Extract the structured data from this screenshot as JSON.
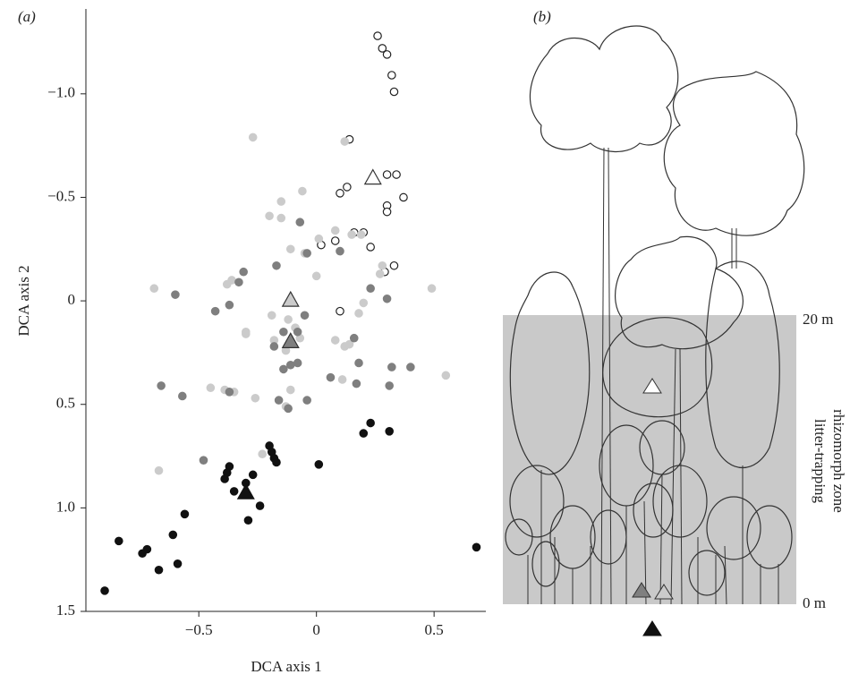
{
  "chart_data": {
    "type": "scatter",
    "panel_label": "(a)",
    "xlabel": "DCA axis 1",
    "ylabel": "DCA axis 2",
    "xlim": [
      -0.98,
      0.72
    ],
    "ylim": [
      1.5,
      -1.41
    ],
    "xticks": [
      {
        "value": -0.5,
        "label": "−0.5"
      },
      0,
      0.5
    ],
    "yticks": [
      {
        "value": -1.0,
        "label": "−1.0"
      },
      {
        "value": -0.5,
        "label": "−0.5"
      },
      0,
      0.5,
      {
        "value": 1.0,
        "label": "1.0"
      },
      1.5
    ],
    "series": [
      {
        "facecolor": "#ffffff",
        "edgecolor": "#222222",
        "x": [
          0.26,
          0.28,
          0.3,
          0.32,
          0.33,
          0.14,
          0.13,
          0.1,
          0.3,
          0.34,
          0.37,
          0.3,
          0.3,
          0.08,
          0.16,
          0.2,
          0.23,
          0.33,
          0.29,
          0.02,
          0.1
        ],
        "y": [
          -1.28,
          -1.22,
          -1.19,
          -1.09,
          -1.01,
          -0.78,
          -0.55,
          -0.52,
          -0.61,
          -0.61,
          -0.5,
          -0.46,
          -0.43,
          -0.29,
          -0.33,
          -0.33,
          -0.26,
          -0.17,
          -0.14,
          -0.27,
          0.05
        ],
        "centroid_x": 0.24,
        "centroid_y": -0.59
      },
      {
        "facecolor": "#cbcbcb",
        "edgecolor": "#cbcbcb",
        "x": [
          -0.69,
          -0.67,
          -0.38,
          -0.36,
          -0.39,
          -0.35,
          -0.26,
          -0.23,
          -0.3,
          -0.3,
          -0.15,
          -0.06,
          -0.15,
          -0.11,
          -0.2,
          -0.05,
          0.0,
          0.01,
          0.08,
          0.15,
          0.19,
          0.27,
          0.28,
          -0.19,
          -0.12,
          -0.09,
          -0.07,
          -0.13,
          -0.11,
          -0.13,
          0.08,
          0.12,
          0.14,
          0.49,
          0.55,
          0.11,
          0.18,
          0.2,
          -0.45,
          -0.18,
          0.12,
          -0.27
        ],
        "y": [
          -0.06,
          0.82,
          -0.08,
          -0.1,
          0.43,
          0.44,
          0.47,
          0.74,
          0.15,
          0.16,
          -0.48,
          -0.53,
          -0.4,
          -0.25,
          -0.41,
          -0.23,
          -0.12,
          -0.3,
          -0.34,
          -0.32,
          -0.32,
          -0.13,
          -0.17,
          0.07,
          0.09,
          0.13,
          0.18,
          0.24,
          0.43,
          0.51,
          0.19,
          0.22,
          0.21,
          -0.06,
          0.36,
          0.38,
          0.06,
          0.01,
          0.42,
          0.19,
          -0.77,
          -0.79
        ],
        "centroid_x": -0.11,
        "centroid_y": 0.0
      },
      {
        "facecolor": "#7f7f7f",
        "edgecolor": "#7f7f7f",
        "x": [
          -0.6,
          -0.43,
          -0.37,
          -0.33,
          -0.31,
          -0.66,
          -0.57,
          -0.48,
          -0.37,
          -0.17,
          -0.04,
          -0.07,
          0.1,
          0.23,
          0.3,
          -0.14,
          -0.08,
          -0.14,
          -0.11,
          -0.12,
          -0.16,
          -0.04,
          0.06,
          0.18,
          0.17,
          0.32,
          0.31,
          0.4,
          -0.18,
          -0.05,
          0.16,
          -0.08
        ],
        "y": [
          -0.03,
          0.05,
          0.02,
          -0.09,
          -0.14,
          0.41,
          0.46,
          0.77,
          0.44,
          -0.17,
          -0.23,
          -0.38,
          -0.24,
          -0.06,
          -0.01,
          0.15,
          0.15,
          0.33,
          0.31,
          0.52,
          0.48,
          0.48,
          0.37,
          0.3,
          0.4,
          0.32,
          0.41,
          0.32,
          0.22,
          0.07,
          0.18,
          0.3
        ],
        "centroid_x": -0.11,
        "centroid_y": 0.2
      },
      {
        "facecolor": "#111111",
        "edgecolor": "#111111",
        "x": [
          -0.9,
          -0.84,
          -0.74,
          -0.72,
          -0.67,
          -0.61,
          -0.59,
          -0.56,
          -0.37,
          -0.38,
          -0.39,
          -0.35,
          -0.3,
          -0.29,
          -0.27,
          -0.24,
          -0.2,
          -0.19,
          -0.18,
          -0.17,
          0.01,
          0.2,
          0.23,
          0.31,
          0.68
        ],
        "y": [
          1.4,
          1.16,
          1.22,
          1.2,
          1.3,
          1.13,
          1.27,
          1.03,
          0.8,
          0.83,
          0.86,
          0.92,
          0.88,
          1.06,
          0.84,
          0.99,
          0.7,
          0.73,
          0.76,
          0.78,
          0.79,
          0.64,
          0.59,
          0.63,
          1.19
        ],
        "centroid_x": -0.3,
        "centroid_y": 0.93
      }
    ]
  },
  "illustration": {
    "panel_label": "(b)",
    "top_label": "20 m",
    "bottom_label": "0 m",
    "zone_label": [
      "litter-trapping",
      "rhizomorph zone"
    ]
  }
}
